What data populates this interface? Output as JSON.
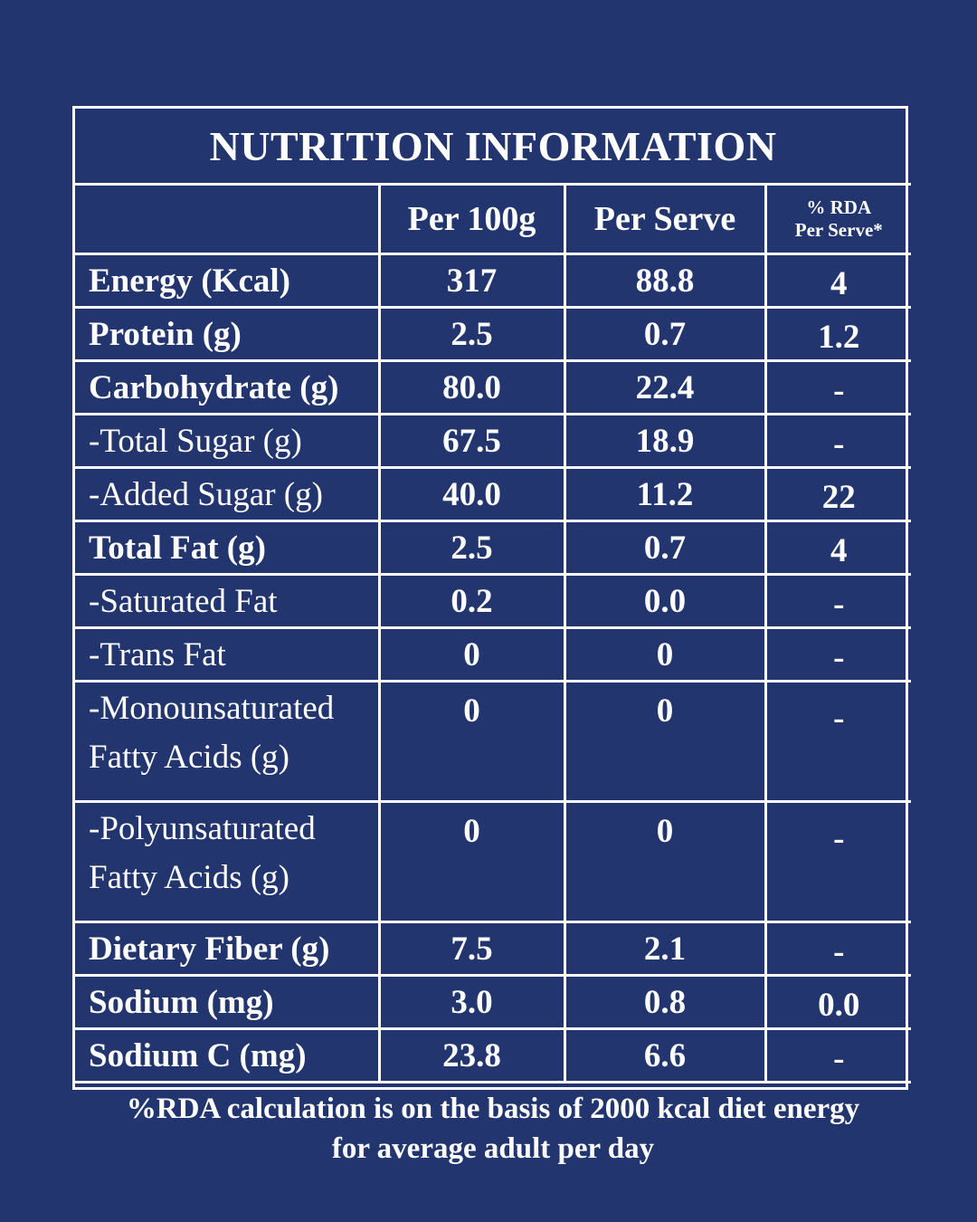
{
  "title": "NUTRITION INFORMATION",
  "headers": {
    "per_100g": "Per 100g",
    "per_serve": "Per Serve",
    "rda_line1": "% RDA",
    "rda_line2": "Per Serve*"
  },
  "rows": [
    {
      "label": "Energy (Kcal)",
      "per_100g": "317",
      "per_serve": "88.8",
      "rda": "4"
    },
    {
      "label": "Protein (g)",
      "per_100g": "2.5",
      "per_serve": "0.7",
      "rda": "1.2"
    },
    {
      "label": "Carbohydrate (g)",
      "per_100g": "80.0",
      "per_serve": "22.4",
      "rda": "-"
    },
    {
      "label": "-Total Sugar (g)",
      "per_100g": "67.5",
      "per_serve": "18.9",
      "rda": "-"
    },
    {
      "label": "-Added Sugar (g)",
      "per_100g": "40.0",
      "per_serve": "11.2",
      "rda": "22"
    },
    {
      "label": "Total Fat (g)",
      "per_100g": "2.5",
      "per_serve": "0.7",
      "rda": "4"
    },
    {
      "label": "-Saturated Fat",
      "per_100g": "0.2",
      "per_serve": "0.0",
      "rda": "-"
    },
    {
      "label": "-Trans Fat",
      "per_100g": "0",
      "per_serve": "0",
      "rda": "-"
    },
    {
      "label_line1": "-Monounsaturated",
      "label_line2": "Fatty Acids (g)",
      "per_100g": "0",
      "per_serve": "0",
      "rda": "-"
    },
    {
      "label_line1": "-Polyunsaturated",
      "label_line2": "Fatty Acids (g)",
      "per_100g": "0",
      "per_serve": "0",
      "rda": "-"
    },
    {
      "label": "Dietary Fiber (g)",
      "per_100g": "7.5",
      "per_serve": "2.1",
      "rda": "-"
    },
    {
      "label": "Sodium (mg)",
      "per_100g": "3.0",
      "per_serve": "0.8",
      "rda": "0.0"
    },
    {
      "label": "Sodium C (mg)",
      "per_100g": "23.8",
      "per_serve": "6.6",
      "rda": "-"
    }
  ],
  "footer": {
    "line1": "%RDA calculation is on the basis of 2000 kcal diet energy",
    "line2": "for average adult per day"
  },
  "colors": {
    "background": "#22356e",
    "foreground": "#ffffff"
  }
}
